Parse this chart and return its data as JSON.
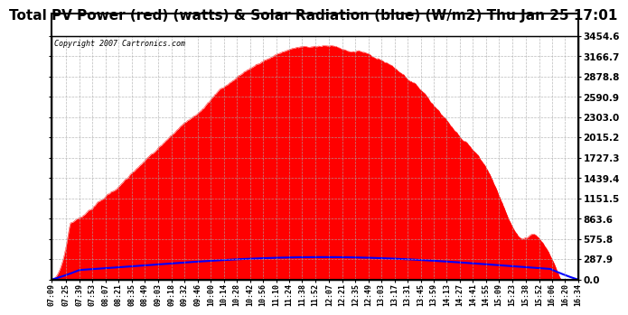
{
  "title": "Total PV Power (red) (watts) & Solar Radiation (blue) (W/m2) Thu Jan 25 17:01",
  "copyright_text": "Copyright 2007 Cartronics.com",
  "y_max": 3454.6,
  "y_min": 0.0,
  "y_ticks": [
    0.0,
    287.9,
    575.8,
    863.6,
    1151.5,
    1439.4,
    1727.3,
    2015.2,
    2303.0,
    2590.9,
    2878.8,
    3166.7,
    3454.6
  ],
  "bg_color": "#ffffff",
  "plot_bg_color": "#ffffff",
  "grid_color": "#aaaaaa",
  "red_color": "#ff0000",
  "blue_color": "#0000ff",
  "title_fontsize": 11,
  "x_labels": [
    "07:09",
    "07:25",
    "07:39",
    "07:53",
    "08:07",
    "08:21",
    "08:35",
    "08:49",
    "09:03",
    "09:18",
    "09:32",
    "09:46",
    "10:00",
    "10:14",
    "10:28",
    "10:42",
    "10:56",
    "11:10",
    "11:24",
    "11:38",
    "11:52",
    "12:07",
    "12:21",
    "12:35",
    "12:49",
    "13:03",
    "13:17",
    "13:31",
    "13:45",
    "13:59",
    "14:13",
    "14:27",
    "14:41",
    "14:55",
    "15:09",
    "15:23",
    "15:38",
    "15:52",
    "16:06",
    "16:20",
    "16:34"
  ]
}
